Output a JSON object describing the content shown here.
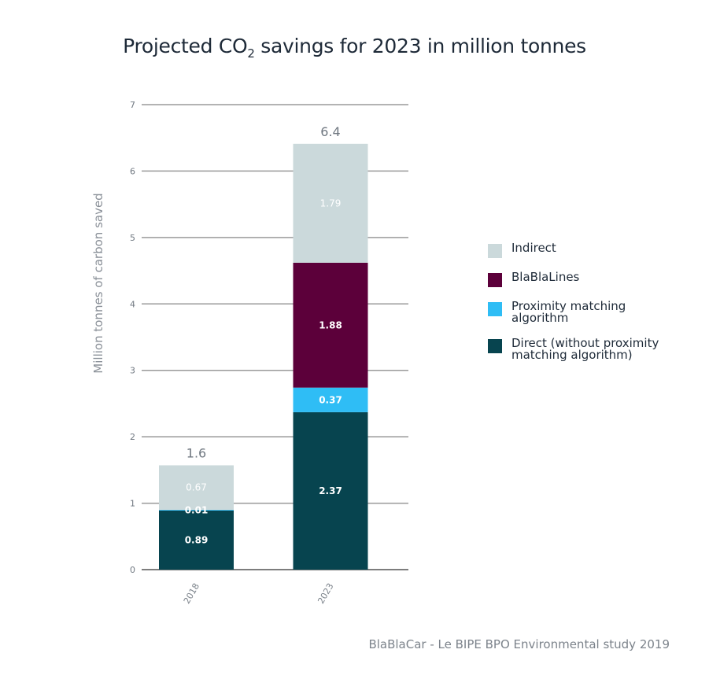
{
  "chart_data": {
    "type": "bar",
    "stacked": true,
    "title_main": "Projected CO",
    "title_sub": "2",
    "title_rest": " savings for 2023 in million tonnes",
    "title": "Projected CO2 savings for 2023 in million tonnes",
    "xlabel": "",
    "ylabel": "Million tonnes of carbon saved",
    "ylim": [
      0,
      7
    ],
    "yticks": [
      0,
      1,
      2,
      3,
      4,
      5,
      6,
      7
    ],
    "grid": true,
    "categories": [
      "2018",
      "2023"
    ],
    "totals": [
      "1.6",
      "6.4"
    ],
    "series": [
      {
        "name": "Direct (without proximity matching algorithm)",
        "color": "#07444f",
        "values": [
          0.89,
          2.37
        ],
        "labels": [
          "0.89",
          "2.37"
        ]
      },
      {
        "name": "Proximity matching algorithm",
        "color": "#2fbdf5",
        "values": [
          0.01,
          0.37
        ],
        "labels": [
          "0.01",
          "0.37"
        ]
      },
      {
        "name": "BlaBlaLines",
        "color": "#5c003a",
        "values": [
          0.0,
          1.88
        ],
        "labels": [
          "",
          "1.88"
        ]
      },
      {
        "name": "Indirect",
        "color": "#cbd9db",
        "values": [
          0.67,
          1.79
        ],
        "labels": [
          "0.67",
          "1.79"
        ]
      }
    ],
    "legend_position": "right",
    "legend": [
      {
        "label": "Indirect",
        "color": "#cbd9db"
      },
      {
        "label": "BlaBlaLines",
        "color": "#5c003a"
      },
      {
        "label": "Proximity matching algorithm",
        "color": "#2fbdf5"
      },
      {
        "label": "Direct (without proximity matching algorithm)",
        "color": "#07444f"
      }
    ],
    "source": "BlaBlaCar - Le BIPE BPO Environmental study 2019"
  }
}
